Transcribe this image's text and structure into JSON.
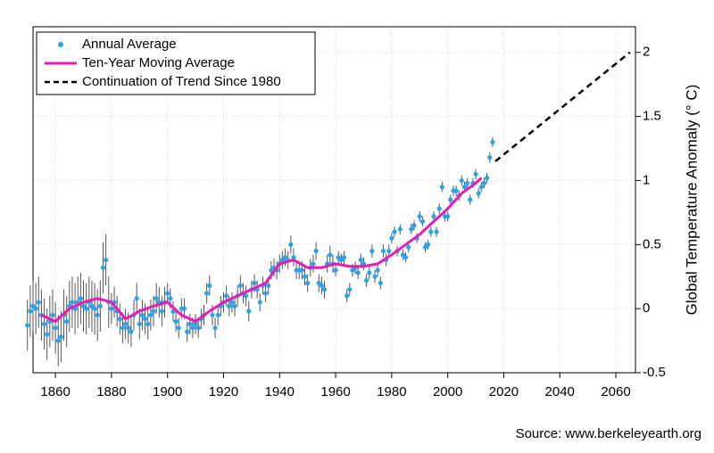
{
  "chart_data": {
    "type": "line",
    "y_label": "Global Temperature Anomaly (° C)",
    "source": "Source: www.berkeleyearth.org",
    "xlim": [
      1852,
      2067
    ],
    "ylim": [
      -0.5,
      2.2
    ],
    "xticks": [
      1860,
      1880,
      1900,
      1920,
      1940,
      1960,
      1980,
      2000,
      2020,
      2040,
      2060
    ],
    "yticks": [
      -0.5,
      0,
      0.5,
      1,
      1.5,
      2
    ],
    "grid": true,
    "legend": "upper left",
    "series": [
      {
        "name": "Annual Average",
        "style": "points",
        "color": "#2aa3e8",
        "error_color": "#555555",
        "x": [
          1850,
          1851,
          1852,
          1853,
          1854,
          1855,
          1856,
          1857,
          1858,
          1859,
          1860,
          1861,
          1862,
          1863,
          1864,
          1865,
          1866,
          1867,
          1868,
          1869,
          1870,
          1871,
          1872,
          1873,
          1874,
          1875,
          1876,
          1877,
          1878,
          1879,
          1880,
          1881,
          1882,
          1883,
          1884,
          1885,
          1886,
          1887,
          1888,
          1889,
          1890,
          1891,
          1892,
          1893,
          1894,
          1895,
          1896,
          1897,
          1898,
          1899,
          1900,
          1901,
          1902,
          1903,
          1904,
          1905,
          1906,
          1907,
          1908,
          1909,
          1910,
          1911,
          1912,
          1913,
          1914,
          1915,
          1916,
          1917,
          1918,
          1919,
          1920,
          1921,
          1922,
          1923,
          1924,
          1925,
          1926,
          1927,
          1928,
          1929,
          1930,
          1931,
          1932,
          1933,
          1934,
          1935,
          1936,
          1937,
          1938,
          1939,
          1940,
          1941,
          1942,
          1943,
          1944,
          1945,
          1946,
          1947,
          1948,
          1949,
          1950,
          1951,
          1952,
          1953,
          1954,
          1955,
          1956,
          1957,
          1958,
          1959,
          1960,
          1961,
          1962,
          1963,
          1964,
          1965,
          1966,
          1967,
          1968,
          1969,
          1970,
          1971,
          1972,
          1973,
          1974,
          1975,
          1976,
          1977,
          1978,
          1979,
          1980,
          1981,
          1982,
          1983,
          1984,
          1985,
          1986,
          1987,
          1988,
          1989,
          1990,
          1991,
          1992,
          1993,
          1994,
          1995,
          1996,
          1997,
          1998,
          1999,
          2000,
          2001,
          2002,
          2003,
          2004,
          2005,
          2006,
          2007,
          2008,
          2009,
          2010,
          2011,
          2012,
          2013,
          2014,
          2015,
          2016
        ],
        "values": [
          -0.13,
          -0.02,
          0.02,
          0.0,
          0.05,
          -0.05,
          -0.12,
          -0.2,
          -0.1,
          -0.05,
          -0.15,
          -0.25,
          -0.22,
          -0.05,
          -0.1,
          0.02,
          0.05,
          0.0,
          0.05,
          0.08,
          0.02,
          0.0,
          0.05,
          0.02,
          0.0,
          -0.05,
          0.02,
          0.32,
          0.38,
          0.05,
          0.0,
          0.05,
          -0.02,
          -0.08,
          -0.15,
          -0.12,
          -0.15,
          -0.18,
          -0.05,
          0.08,
          -0.12,
          -0.05,
          -0.08,
          -0.12,
          -0.05,
          -0.02,
          0.08,
          0.05,
          -0.02,
          0.05,
          0.12,
          0.08,
          -0.02,
          -0.1,
          -0.15,
          0.0,
          0.0,
          -0.18,
          -0.12,
          -0.15,
          -0.12,
          -0.15,
          -0.08,
          -0.05,
          0.12,
          0.18,
          -0.05,
          -0.15,
          -0.05,
          0.02,
          0.05,
          0.1,
          0.02,
          0.05,
          0.02,
          0.1,
          0.18,
          0.12,
          0.1,
          -0.02,
          0.15,
          0.2,
          0.15,
          0.05,
          0.18,
          0.12,
          0.18,
          0.3,
          0.32,
          0.3,
          0.35,
          0.38,
          0.4,
          0.38,
          0.5,
          0.4,
          0.3,
          0.3,
          0.3,
          0.25,
          0.2,
          0.32,
          0.35,
          0.45,
          0.2,
          0.18,
          0.15,
          0.35,
          0.42,
          0.35,
          0.3,
          0.4,
          0.38,
          0.4,
          0.1,
          0.15,
          0.3,
          0.32,
          0.28,
          0.38,
          0.35,
          0.22,
          0.28,
          0.45,
          0.25,
          0.3,
          0.2,
          0.45,
          0.38,
          0.45,
          0.55,
          0.6,
          0.45,
          0.62,
          0.42,
          0.4,
          0.48,
          0.62,
          0.65,
          0.55,
          0.72,
          0.68,
          0.48,
          0.5,
          0.6,
          0.72,
          0.6,
          0.78,
          0.95,
          0.72,
          0.72,
          0.85,
          0.92,
          0.92,
          0.88,
          1.0,
          0.95,
          0.98,
          0.85,
          0.98,
          1.05,
          0.9,
          0.95,
          0.98,
          1.02,
          1.18,
          1.3
        ],
        "errors": [
          0.2,
          0.2,
          0.2,
          0.2,
          0.2,
          0.2,
          0.2,
          0.2,
          0.2,
          0.2,
          0.2,
          0.2,
          0.2,
          0.2,
          0.2,
          0.2,
          0.2,
          0.2,
          0.2,
          0.2,
          0.2,
          0.2,
          0.2,
          0.2,
          0.2,
          0.2,
          0.2,
          0.2,
          0.2,
          0.2,
          0.12,
          0.12,
          0.12,
          0.12,
          0.12,
          0.12,
          0.12,
          0.12,
          0.12,
          0.12,
          0.12,
          0.12,
          0.12,
          0.12,
          0.12,
          0.12,
          0.12,
          0.12,
          0.12,
          0.12,
          0.08,
          0.08,
          0.08,
          0.08,
          0.08,
          0.08,
          0.08,
          0.08,
          0.08,
          0.08,
          0.08,
          0.08,
          0.08,
          0.08,
          0.08,
          0.08,
          0.08,
          0.08,
          0.08,
          0.08,
          0.08,
          0.08,
          0.08,
          0.08,
          0.08,
          0.08,
          0.08,
          0.08,
          0.08,
          0.08,
          0.07,
          0.07,
          0.07,
          0.07,
          0.07,
          0.07,
          0.07,
          0.07,
          0.07,
          0.07,
          0.07,
          0.07,
          0.07,
          0.07,
          0.07,
          0.07,
          0.07,
          0.07,
          0.07,
          0.07,
          0.07,
          0.07,
          0.07,
          0.07,
          0.07,
          0.07,
          0.07,
          0.07,
          0.07,
          0.07,
          0.05,
          0.05,
          0.05,
          0.05,
          0.05,
          0.05,
          0.05,
          0.05,
          0.05,
          0.05,
          0.05,
          0.05,
          0.05,
          0.05,
          0.05,
          0.05,
          0.05,
          0.05,
          0.05,
          0.05,
          0.04,
          0.04,
          0.04,
          0.04,
          0.04,
          0.04,
          0.04,
          0.04,
          0.04,
          0.04,
          0.04,
          0.04,
          0.04,
          0.04,
          0.04,
          0.04,
          0.04,
          0.04,
          0.04,
          0.04,
          0.04,
          0.04,
          0.04,
          0.04,
          0.04,
          0.04,
          0.04,
          0.04,
          0.04,
          0.04,
          0.04,
          0.04,
          0.04,
          0.04,
          0.04,
          0.04,
          0.04
        ]
      },
      {
        "name": "Ten-Year Moving Average",
        "style": "line",
        "color": "#e81cb4",
        "x": [
          1855,
          1860,
          1865,
          1870,
          1875,
          1880,
          1885,
          1890,
          1895,
          1900,
          1905,
          1910,
          1915,
          1920,
          1925,
          1930,
          1935,
          1940,
          1945,
          1950,
          1955,
          1960,
          1965,
          1970,
          1975,
          1980,
          1985,
          1990,
          1995,
          2000,
          2005,
          2010,
          2012
        ],
        "values": [
          -0.05,
          -0.1,
          0.0,
          0.05,
          0.08,
          0.05,
          -0.08,
          -0.02,
          0.02,
          0.05,
          -0.05,
          -0.1,
          -0.02,
          0.05,
          0.1,
          0.15,
          0.2,
          0.35,
          0.38,
          0.32,
          0.32,
          0.35,
          0.33,
          0.33,
          0.35,
          0.42,
          0.5,
          0.58,
          0.68,
          0.78,
          0.9,
          0.98,
          1.02
        ]
      },
      {
        "name": "Continuation of Trend Since 1980",
        "style": "dashed",
        "color": "#000000",
        "x": [
          2017,
          2065
        ],
        "values": [
          1.15,
          2.0
        ]
      }
    ]
  }
}
